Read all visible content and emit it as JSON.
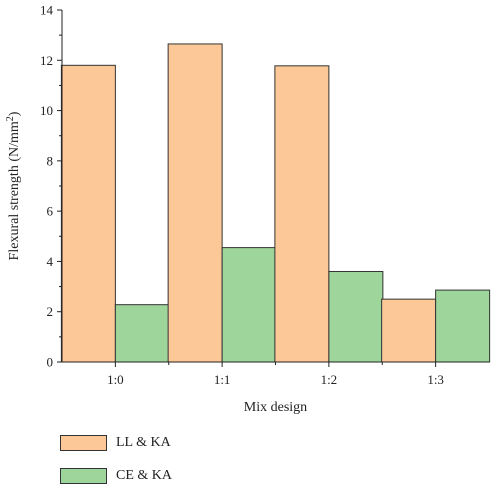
{
  "chart_data": {
    "type": "bar",
    "categories": [
      "1:0",
      "1:1",
      "1:2",
      "1:3"
    ],
    "series": [
      {
        "name": "LL & KA",
        "values": [
          11.8,
          12.65,
          11.78,
          2.5
        ],
        "color": "#fdc897"
      },
      {
        "name": "CE & KA",
        "values": [
          2.28,
          4.55,
          3.6,
          2.86
        ],
        "color": "#9ed59a"
      }
    ],
    "xlabel": "Mix design",
    "ylabel_prefix": "Flexural strength (N/mm",
    "ylabel_superscript": "2",
    "ylabel_suffix": ")",
    "ylim": [
      0,
      14
    ],
    "yticks": [
      "0",
      "2",
      "4",
      "6",
      "8",
      "10",
      "12",
      "14"
    ],
    "grid": false,
    "legend_position": "bottom-left"
  }
}
